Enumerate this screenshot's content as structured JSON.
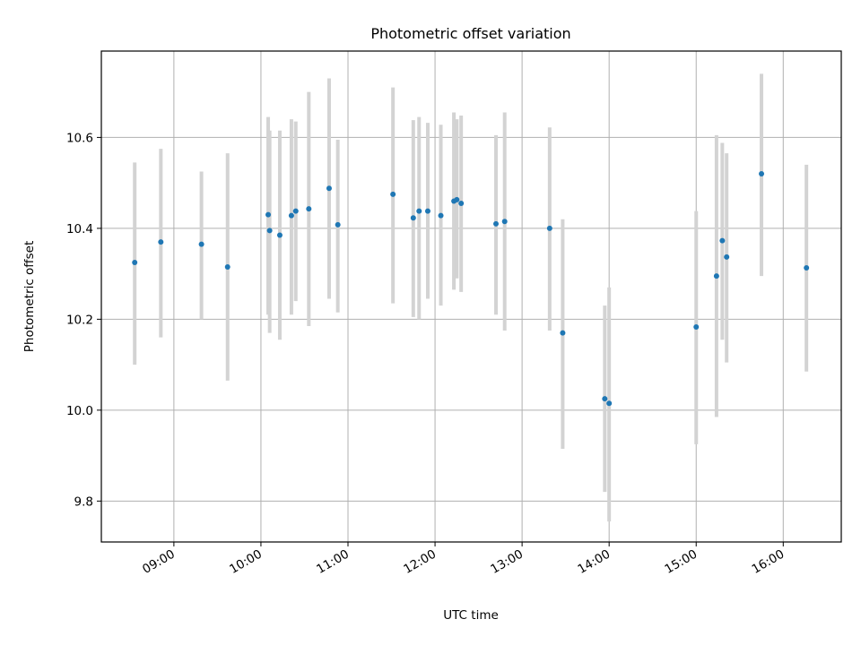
{
  "chart_data": {
    "type": "scatter",
    "title": "Photometric offset variation",
    "xlabel": "UTC time",
    "ylabel": "Photometric offset",
    "x_ticks": [
      "09:00",
      "10:00",
      "11:00",
      "12:00",
      "13:00",
      "14:00",
      "15:00",
      "16:00"
    ],
    "y_ticks": [
      "9.8",
      "10.0",
      "10.2",
      "10.4",
      "10.6"
    ],
    "xlim": [
      "08:10",
      "16:40"
    ],
    "ylim": [
      9.71,
      10.79
    ],
    "grid": true,
    "legend": "none",
    "colors": {
      "point": "#1f77b4",
      "errorbar": "#d3d3d3",
      "grid": "#b0b0b0"
    },
    "points": [
      {
        "t": "08:33",
        "y": 10.325,
        "ylo": 10.1,
        "yhi": 10.545
      },
      {
        "t": "08:51",
        "y": 10.37,
        "ylo": 10.16,
        "yhi": 10.575
      },
      {
        "t": "09:19",
        "y": 10.365,
        "ylo": 10.2,
        "yhi": 10.525
      },
      {
        "t": "09:37",
        "y": 10.315,
        "ylo": 10.065,
        "yhi": 10.565
      },
      {
        "t": "10:05",
        "y": 10.43,
        "ylo": 10.21,
        "yhi": 10.645
      },
      {
        "t": "10:06",
        "y": 10.395,
        "ylo": 10.17,
        "yhi": 10.615
      },
      {
        "t": "10:13",
        "y": 10.385,
        "ylo": 10.155,
        "yhi": 10.615
      },
      {
        "t": "10:21",
        "y": 10.428,
        "ylo": 10.21,
        "yhi": 10.64
      },
      {
        "t": "10:24",
        "y": 10.438,
        "ylo": 10.24,
        "yhi": 10.635
      },
      {
        "t": "10:33",
        "y": 10.443,
        "ylo": 10.185,
        "yhi": 10.7
      },
      {
        "t": "10:47",
        "y": 10.488,
        "ylo": 10.245,
        "yhi": 10.73
      },
      {
        "t": "10:53",
        "y": 10.408,
        "ylo": 10.215,
        "yhi": 10.595
      },
      {
        "t": "11:31",
        "y": 10.475,
        "ylo": 10.235,
        "yhi": 10.71
      },
      {
        "t": "11:45",
        "y": 10.423,
        "ylo": 10.205,
        "yhi": 10.638
      },
      {
        "t": "11:49",
        "y": 10.438,
        "ylo": 10.2,
        "yhi": 10.645
      },
      {
        "t": "11:55",
        "y": 10.438,
        "ylo": 10.245,
        "yhi": 10.632
      },
      {
        "t": "12:04",
        "y": 10.428,
        "ylo": 10.23,
        "yhi": 10.628
      },
      {
        "t": "12:13",
        "y": 10.46,
        "ylo": 10.265,
        "yhi": 10.655
      },
      {
        "t": "12:15",
        "y": 10.463,
        "ylo": 10.29,
        "yhi": 10.64
      },
      {
        "t": "12:18",
        "y": 10.455,
        "ylo": 10.26,
        "yhi": 10.648
      },
      {
        "t": "12:42",
        "y": 10.41,
        "ylo": 10.21,
        "yhi": 10.605
      },
      {
        "t": "12:48",
        "y": 10.415,
        "ylo": 10.175,
        "yhi": 10.655
      },
      {
        "t": "13:19",
        "y": 10.4,
        "ylo": 10.175,
        "yhi": 10.622
      },
      {
        "t": "13:28",
        "y": 10.17,
        "ylo": 9.915,
        "yhi": 10.42
      },
      {
        "t": "13:57",
        "y": 10.025,
        "ylo": 9.82,
        "yhi": 10.23
      },
      {
        "t": "14:00",
        "y": 10.015,
        "ylo": 9.755,
        "yhi": 10.27
      },
      {
        "t": "15:00",
        "y": 10.183,
        "ylo": 9.925,
        "yhi": 10.438
      },
      {
        "t": "15:14",
        "y": 10.295,
        "ylo": 9.985,
        "yhi": 10.605
      },
      {
        "t": "15:18",
        "y": 10.373,
        "ylo": 10.155,
        "yhi": 10.588
      },
      {
        "t": "15:21",
        "y": 10.337,
        "ylo": 10.105,
        "yhi": 10.565
      },
      {
        "t": "15:45",
        "y": 10.52,
        "ylo": 10.295,
        "yhi": 10.74
      },
      {
        "t": "16:16",
        "y": 10.313,
        "ylo": 10.085,
        "yhi": 10.54
      }
    ]
  }
}
